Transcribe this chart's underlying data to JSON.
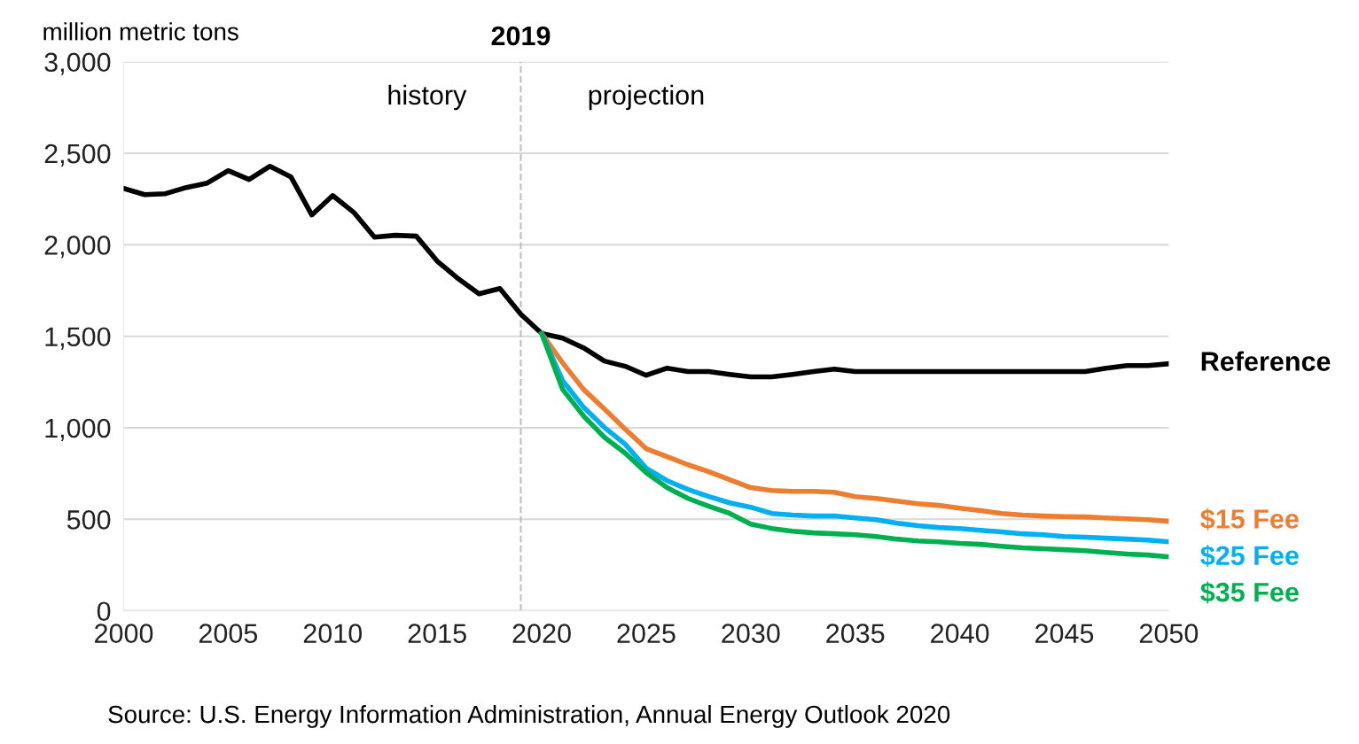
{
  "chart_data": {
    "type": "line",
    "ylabel": "million metric tons",
    "xlim": [
      2000,
      2050
    ],
    "xticks": [
      2000,
      2005,
      2010,
      2015,
      2020,
      2025,
      2030,
      2035,
      2040,
      2045,
      2050
    ],
    "ylim": [
      0,
      3000
    ],
    "yticks": [
      {
        "value": 0,
        "label": "0"
      },
      {
        "value": 500,
        "label": "500"
      },
      {
        "value": 1000,
        "label": "1,000"
      },
      {
        "value": 1500,
        "label": "1,500"
      },
      {
        "value": 2000,
        "label": "2,000"
      },
      {
        "value": 2500,
        "label": "2,500"
      },
      {
        "value": 3000,
        "label": "3,000"
      }
    ],
    "grid": "y",
    "legend": false,
    "line_style": "solid",
    "marker": "none",
    "ref_lines": [
      {
        "axis": "x",
        "value": 2019,
        "label": "2019",
        "color": "#bfbfbf",
        "line_style": "dashed"
      }
    ],
    "annotations": [
      "history",
      "projection",
      "Source: U.S. Energy Information Administration, Annual Energy Outlook 2020"
    ],
    "series": [
      {
        "name": "Reference",
        "color": "#000000",
        "x": [
          2000,
          2001,
          2002,
          2003,
          2004,
          2005,
          2006,
          2007,
          2008,
          2009,
          2010,
          2011,
          2012,
          2013,
          2014,
          2015,
          2016,
          2017,
          2018,
          2019,
          2020,
          2021,
          2022,
          2023,
          2024,
          2025,
          2026,
          2027,
          2028,
          2029,
          2030,
          2031,
          2032,
          2033,
          2034,
          2035,
          2040,
          2045,
          2046,
          2047,
          2048,
          2049,
          2050
        ],
        "values": [
          2308,
          2274,
          2279,
          2313,
          2337,
          2405,
          2357,
          2429,
          2371,
          2163,
          2269,
          2178,
          2042,
          2052,
          2047,
          1911,
          1815,
          1732,
          1761,
          1621,
          1515,
          1490,
          1437,
          1365,
          1336,
          1287,
          1326,
          1307,
          1307,
          1292,
          1278,
          1278,
          1292,
          1307,
          1321,
          1307,
          1307,
          1307,
          1307,
          1326,
          1340,
          1340,
          1350
        ]
      },
      {
        "name": "$15 Fee",
        "color": "#ed7d31",
        "x": [
          2020,
          2021,
          2022,
          2023,
          2024,
          2025,
          2026,
          2027,
          2028,
          2029,
          2030,
          2031,
          2032,
          2033,
          2034,
          2035,
          2036,
          2037,
          2038,
          2039,
          2040,
          2041,
          2042,
          2043,
          2044,
          2045,
          2046,
          2047,
          2048,
          2049,
          2050
        ],
        "values": [
          1515,
          1355,
          1210,
          1103,
          992,
          886,
          842,
          798,
          760,
          716,
          673,
          658,
          653,
          653,
          648,
          624,
          614,
          600,
          585,
          576,
          561,
          547,
          532,
          523,
          518,
          515,
          513,
          508,
          503,
          498,
          489
        ]
      },
      {
        "name": "$25 Fee",
        "color": "#00b0f0",
        "x": [
          2020,
          2021,
          2022,
          2023,
          2024,
          2025,
          2026,
          2027,
          2028,
          2029,
          2030,
          2031,
          2032,
          2033,
          2034,
          2035,
          2036,
          2037,
          2038,
          2039,
          2040,
          2041,
          2042,
          2043,
          2044,
          2045,
          2046,
          2047,
          2048,
          2049,
          2050
        ],
        "values": [
          1515,
          1258,
          1113,
          1002,
          910,
          779,
          711,
          663,
          624,
          590,
          566,
          532,
          523,
          518,
          518,
          508,
          498,
          479,
          465,
          455,
          450,
          440,
          431,
          421,
          416,
          406,
          402,
          397,
          392,
          387,
          377
        ]
      },
      {
        "name": "$35 Fee",
        "color": "#00b050",
        "x": [
          2020,
          2021,
          2022,
          2023,
          2024,
          2025,
          2026,
          2027,
          2028,
          2029,
          2030,
          2031,
          2032,
          2033,
          2034,
          2035,
          2036,
          2037,
          2038,
          2039,
          2040,
          2041,
          2042,
          2043,
          2044,
          2045,
          2046,
          2047,
          2048,
          2049,
          2050
        ],
        "values": [
          1515,
          1210,
          1065,
          948,
          861,
          755,
          673,
          614,
          571,
          532,
          474,
          450,
          435,
          426,
          421,
          416,
          406,
          392,
          382,
          377,
          368,
          363,
          353,
          344,
          339,
          334,
          329,
          319,
          310,
          305,
          295
        ]
      }
    ]
  }
}
